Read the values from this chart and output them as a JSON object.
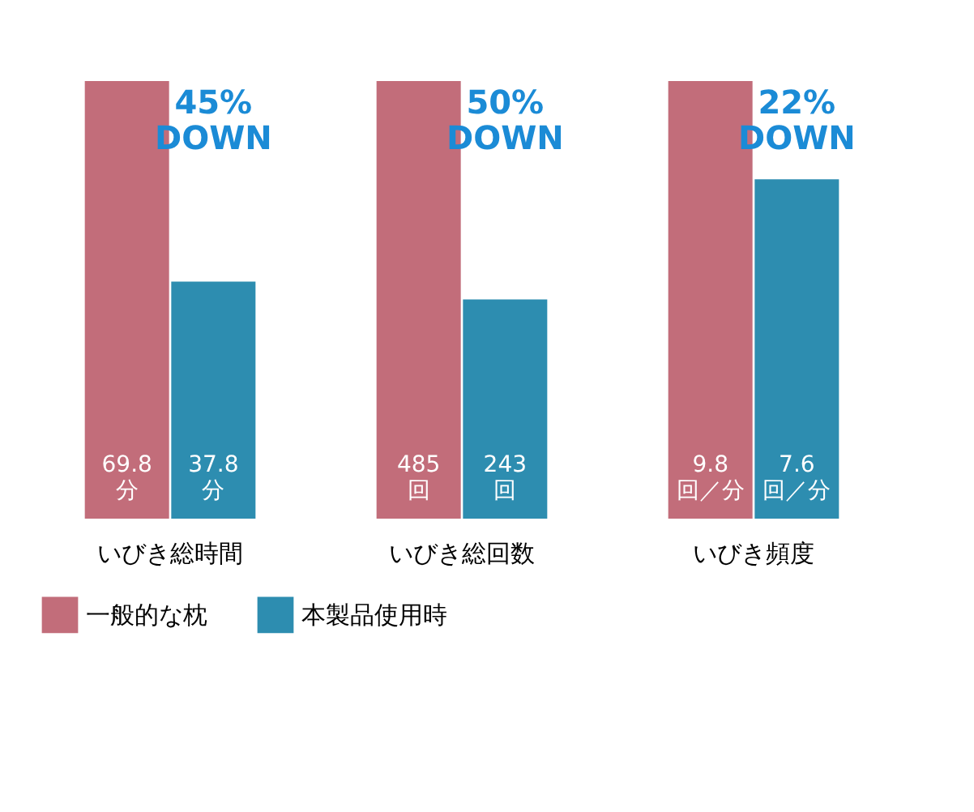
{
  "chart_data": [
    {
      "type": "bar",
      "categories": [
        "いびき総時間"
      ],
      "series": [
        {
          "name": "一般的な枕",
          "color": "#c26d7a",
          "values": [
            69.8
          ],
          "value_labels": [
            "69.8 分"
          ]
        },
        {
          "name": "本製品使用時",
          "color": "#2d8db0",
          "values": [
            37.8
          ],
          "value_labels": [
            "37.8 分"
          ]
        }
      ],
      "annotations": [
        "45% DOWN"
      ],
      "tick_labels": "x",
      "legend": "bottom"
    },
    {
      "type": "bar",
      "categories": [
        "いびき総回数"
      ],
      "series": [
        {
          "name": "一般的な枕",
          "color": "#c26d7a",
          "values": [
            485
          ],
          "value_labels": [
            "485 回"
          ]
        },
        {
          "name": "本製品使用時",
          "color": "#2d8db0",
          "values": [
            243
          ],
          "value_labels": [
            "243 回"
          ]
        }
      ],
      "annotations": [
        "50% DOWN"
      ],
      "tick_labels": "x",
      "legend": "bottom"
    },
    {
      "type": "bar",
      "categories": [
        "いびき頻度"
      ],
      "series": [
        {
          "name": "一般的な枕",
          "color": "#c26d7a",
          "values": [
            9.8
          ],
          "value_labels": [
            "9.8 回／分"
          ]
        },
        {
          "name": "本製品使用時",
          "color": "#2d8db0",
          "values": [
            7.6
          ],
          "value_labels": [
            "7.6 回／分"
          ]
        }
      ],
      "annotations": [
        "22% DOWN"
      ],
      "tick_labels": "x",
      "legend": "bottom"
    }
  ]
}
